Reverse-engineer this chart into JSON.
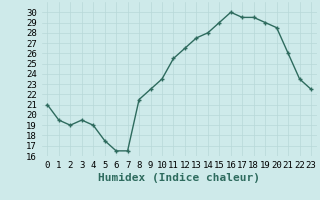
{
  "x": [
    0,
    1,
    2,
    3,
    4,
    5,
    6,
    7,
    8,
    9,
    10,
    11,
    12,
    13,
    14,
    15,
    16,
    17,
    18,
    19,
    20,
    21,
    22,
    23
  ],
  "y": [
    21.0,
    19.5,
    19.0,
    19.5,
    19.0,
    17.5,
    16.5,
    16.5,
    21.5,
    22.5,
    23.5,
    25.5,
    26.5,
    27.5,
    28.0,
    29.0,
    30.0,
    29.5,
    29.5,
    29.0,
    28.5,
    26.0,
    23.5,
    22.5
  ],
  "line_color": "#2e6b5e",
  "marker": "+",
  "markersize": 3,
  "linewidth": 1.0,
  "xlabel": "Humidex (Indice chaleur)",
  "xlim": [
    -0.5,
    23.5
  ],
  "ylim": [
    16,
    31
  ],
  "yticks": [
    16,
    17,
    18,
    19,
    20,
    21,
    22,
    23,
    24,
    25,
    26,
    27,
    28,
    29,
    30
  ],
  "xtick_labels": [
    "0",
    "1",
    "2",
    "3",
    "4",
    "5",
    "6",
    "7",
    "8",
    "9",
    "10",
    "11",
    "12",
    "13",
    "14",
    "15",
    "16",
    "17",
    "18",
    "19",
    "20",
    "21",
    "22",
    "23"
  ],
  "bg_color": "#ceeaea",
  "grid_color": "#b8d8d8",
  "tick_fontsize": 6.5,
  "xlabel_fontsize": 8,
  "markeredgewidth": 1.0
}
